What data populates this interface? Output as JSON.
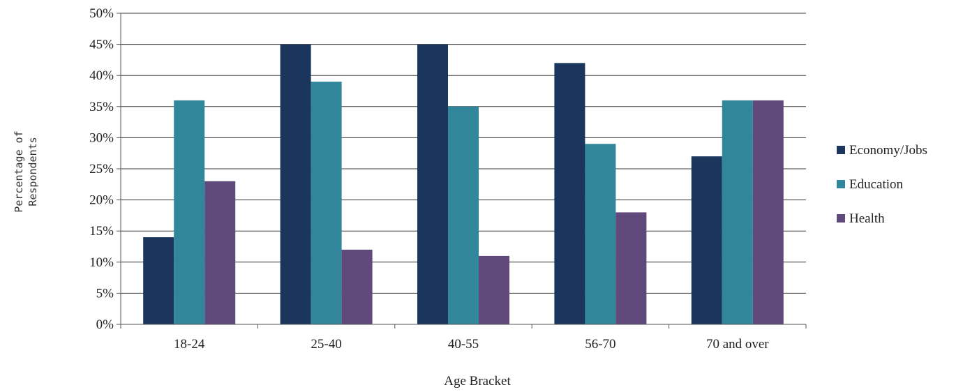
{
  "chart_data": {
    "type": "bar",
    "title": "",
    "xlabel": "Age Bracket",
    "ylabel_lines": [
      "Percentage of",
      "Respondents"
    ],
    "categories": [
      "18-24",
      "25-40",
      "40-55",
      "56-70",
      "70 and over"
    ],
    "series": [
      {
        "name": "Economy/Jobs",
        "color": "#1a365d",
        "values": [
          14,
          45,
          45,
          42,
          27
        ]
      },
      {
        "name": "Education",
        "color": "#31869b",
        "values": [
          36,
          39,
          35,
          29,
          36
        ]
      },
      {
        "name": "Health",
        "color": "#604a7b",
        "values": [
          23,
          12,
          11,
          18,
          36
        ]
      }
    ],
    "ylim": [
      0,
      50
    ],
    "y_ticks": [
      "0%",
      "5%",
      "10%",
      "15%",
      "20%",
      "25%",
      "30%",
      "35%",
      "40%",
      "45%",
      "50%"
    ],
    "grid": true,
    "legend_position": "right"
  }
}
